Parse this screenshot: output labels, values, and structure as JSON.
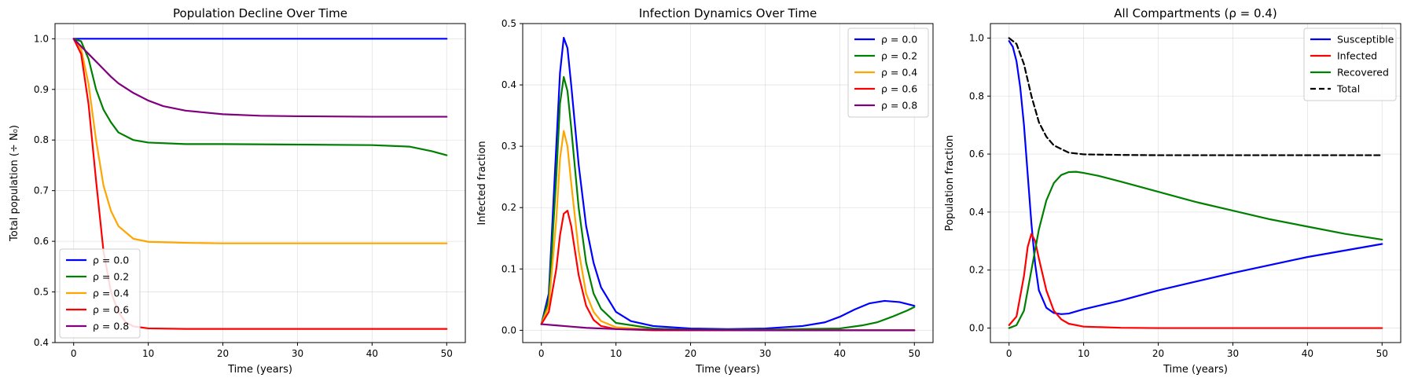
{
  "chart_data": [
    {
      "type": "line",
      "title": "Population Decline Over Time",
      "xlabel": "Time (years)",
      "ylabel": "Total population (÷ N₀)",
      "xlim": [
        -2.5,
        52.5
      ],
      "ylim": [
        0.4,
        1.03
      ],
      "xticks": [
        0,
        10,
        20,
        30,
        40,
        50
      ],
      "xtick_labels": [
        "0",
        "10",
        "20",
        "30",
        "40",
        "50"
      ],
      "yticks": [
        0.4,
        0.5,
        0.6,
        0.7,
        0.8,
        0.9,
        1.0
      ],
      "ytick_labels": [
        "0.4",
        "0.5",
        "0.6",
        "0.7",
        "0.8",
        "0.9",
        "1.0"
      ],
      "grid": true,
      "legend_position": "lower-left",
      "series": [
        {
          "name": "ρ = 0.0",
          "color": "#0000ff",
          "dashed": false,
          "x": [
            0,
            50
          ],
          "y": [
            1.0,
            1.0
          ]
        },
        {
          "name": "ρ = 0.2",
          "color": "#008000",
          "dashed": false,
          "x": [
            0,
            1,
            2,
            3,
            4,
            5,
            6,
            8,
            10,
            15,
            20,
            30,
            40,
            45,
            48,
            50
          ],
          "y": [
            1.0,
            0.995,
            0.96,
            0.9,
            0.86,
            0.835,
            0.815,
            0.8,
            0.795,
            0.792,
            0.792,
            0.791,
            0.79,
            0.787,
            0.778,
            0.77
          ]
        },
        {
          "name": "ρ = 0.4",
          "color": "#ffa500",
          "dashed": false,
          "x": [
            0,
            1,
            2,
            3,
            4,
            5,
            6,
            8,
            10,
            15,
            20,
            30,
            40,
            50
          ],
          "y": [
            1.0,
            0.98,
            0.91,
            0.8,
            0.71,
            0.66,
            0.63,
            0.605,
            0.599,
            0.597,
            0.596,
            0.596,
            0.596,
            0.596
          ]
        },
        {
          "name": "ρ = 0.6",
          "color": "#ff0000",
          "dashed": false,
          "x": [
            0,
            1,
            2,
            3,
            4,
            5,
            6,
            7,
            8,
            10,
            15,
            20,
            30,
            40,
            50
          ],
          "y": [
            1.0,
            0.97,
            0.87,
            0.72,
            0.58,
            0.5,
            0.46,
            0.44,
            0.432,
            0.428,
            0.427,
            0.427,
            0.427,
            0.427,
            0.427
          ]
        },
        {
          "name": "ρ = 0.8",
          "color": "#800080",
          "dashed": false,
          "x": [
            0,
            1,
            2,
            3,
            4,
            5,
            6,
            8,
            10,
            12,
            15,
            20,
            25,
            30,
            40,
            50
          ],
          "y": [
            1.0,
            0.985,
            0.97,
            0.955,
            0.94,
            0.925,
            0.912,
            0.893,
            0.878,
            0.867,
            0.858,
            0.851,
            0.848,
            0.847,
            0.846,
            0.846
          ]
        }
      ]
    },
    {
      "type": "line",
      "title": "Infection Dynamics Over Time",
      "xlabel": "Time (years)",
      "ylabel": "Infected fraction",
      "xlim": [
        -2.5,
        52.5
      ],
      "ylim": [
        -0.02,
        0.5
      ],
      "xticks": [
        0,
        10,
        20,
        30,
        40,
        50
      ],
      "xtick_labels": [
        "0",
        "10",
        "20",
        "30",
        "40",
        "50"
      ],
      "yticks": [
        0.0,
        0.1,
        0.2,
        0.3,
        0.4,
        0.5
      ],
      "ytick_labels": [
        "0.0",
        "0.1",
        "0.2",
        "0.3",
        "0.4",
        "0.5"
      ],
      "grid": true,
      "legend_position": "top-right",
      "series": [
        {
          "name": "ρ = 0.0",
          "color": "#0000ff",
          "dashed": false,
          "x": [
            0,
            1,
            2,
            2.5,
            3,
            3.5,
            4,
            5,
            6,
            7,
            8,
            10,
            12,
            15,
            20,
            25,
            30,
            35,
            38,
            40,
            42,
            44,
            46,
            48,
            50
          ],
          "y": [
            0.01,
            0.06,
            0.3,
            0.42,
            0.477,
            0.46,
            0.4,
            0.27,
            0.17,
            0.11,
            0.07,
            0.03,
            0.015,
            0.007,
            0.003,
            0.002,
            0.003,
            0.007,
            0.013,
            0.022,
            0.034,
            0.044,
            0.048,
            0.046,
            0.04
          ]
        },
        {
          "name": "ρ = 0.2",
          "color": "#008000",
          "dashed": false,
          "x": [
            0,
            1,
            2,
            2.5,
            3,
            3.5,
            4,
            5,
            6,
            7,
            8,
            10,
            15,
            20,
            30,
            40,
            43,
            45,
            47,
            49,
            50
          ],
          "y": [
            0.01,
            0.05,
            0.25,
            0.37,
            0.413,
            0.39,
            0.33,
            0.2,
            0.11,
            0.06,
            0.035,
            0.012,
            0.003,
            0.001,
            0.001,
            0.003,
            0.008,
            0.013,
            0.022,
            0.032,
            0.038
          ]
        },
        {
          "name": "ρ = 0.4",
          "color": "#ffa500",
          "dashed": false,
          "x": [
            0,
            1,
            2,
            2.5,
            3,
            3.5,
            4,
            5,
            6,
            7,
            8,
            10,
            15,
            20,
            30,
            40,
            50
          ],
          "y": [
            0.01,
            0.04,
            0.18,
            0.28,
            0.325,
            0.3,
            0.24,
            0.13,
            0.06,
            0.03,
            0.015,
            0.005,
            0.001,
            0.0,
            0.0,
            0.0,
            0.0
          ]
        },
        {
          "name": "ρ = 0.6",
          "color": "#ff0000",
          "dashed": false,
          "x": [
            0,
            1,
            2,
            2.5,
            3,
            3.5,
            4,
            5,
            6,
            7,
            8,
            10,
            15,
            20,
            30,
            40,
            50
          ],
          "y": [
            0.01,
            0.03,
            0.1,
            0.155,
            0.19,
            0.195,
            0.17,
            0.09,
            0.04,
            0.017,
            0.007,
            0.002,
            0.0,
            0.0,
            0.0,
            0.0,
            0.0
          ]
        },
        {
          "name": "ρ = 0.8",
          "color": "#800080",
          "dashed": false,
          "x": [
            0,
            2,
            4,
            6,
            8,
            10,
            12,
            15,
            20,
            30,
            40,
            50
          ],
          "y": [
            0.01,
            0.008,
            0.006,
            0.004,
            0.003,
            0.002,
            0.0015,
            0.001,
            0.0005,
            0.0,
            0.0,
            0.0
          ]
        }
      ]
    },
    {
      "type": "line",
      "title": "All Compartments (ρ = 0.4)",
      "xlabel": "Time (years)",
      "ylabel": "Population fraction",
      "xlim": [
        -2.5,
        52.5
      ],
      "ylim": [
        -0.05,
        1.05
      ],
      "xticks": [
        0,
        10,
        20,
        30,
        40,
        50
      ],
      "xtick_labels": [
        "0",
        "10",
        "20",
        "30",
        "40",
        "50"
      ],
      "yticks": [
        0.0,
        0.2,
        0.4,
        0.6,
        0.8,
        1.0
      ],
      "ytick_labels": [
        "0.0",
        "0.2",
        "0.4",
        "0.6",
        "0.8",
        "1.0"
      ],
      "grid": true,
      "legend_position": "top-right",
      "series": [
        {
          "name": "Susceptible",
          "color": "#0000ff",
          "dashed": false,
          "x": [
            0,
            0.5,
            1,
            1.5,
            2,
            2.5,
            3,
            3.5,
            4,
            5,
            6,
            7,
            8,
            10,
            15,
            20,
            30,
            40,
            50
          ],
          "y": [
            0.99,
            0.97,
            0.92,
            0.83,
            0.7,
            0.53,
            0.36,
            0.22,
            0.13,
            0.07,
            0.052,
            0.048,
            0.05,
            0.065,
            0.095,
            0.13,
            0.19,
            0.245,
            0.29
          ]
        },
        {
          "name": "Infected",
          "color": "#ff0000",
          "dashed": false,
          "x": [
            0,
            1,
            2,
            2.5,
            3,
            3.5,
            4,
            5,
            6,
            7,
            8,
            10,
            15,
            20,
            30,
            40,
            50
          ],
          "y": [
            0.01,
            0.04,
            0.18,
            0.28,
            0.325,
            0.3,
            0.24,
            0.13,
            0.06,
            0.03,
            0.015,
            0.005,
            0.001,
            0.0,
            0.0,
            0.0,
            0.0
          ]
        },
        {
          "name": "Recovered",
          "color": "#008000",
          "dashed": false,
          "x": [
            0,
            1,
            2,
            3,
            4,
            5,
            6,
            7,
            8,
            9,
            10,
            12,
            15,
            20,
            25,
            30,
            35,
            40,
            45,
            50
          ],
          "y": [
            0.0,
            0.01,
            0.06,
            0.2,
            0.34,
            0.44,
            0.5,
            0.528,
            0.538,
            0.539,
            0.535,
            0.525,
            0.505,
            0.47,
            0.435,
            0.405,
            0.375,
            0.35,
            0.325,
            0.305
          ]
        },
        {
          "name": "Total",
          "color": "#000000",
          "dashed": true,
          "x": [
            0,
            1,
            2,
            3,
            4,
            5,
            6,
            8,
            10,
            15,
            20,
            30,
            40,
            50
          ],
          "y": [
            1.0,
            0.98,
            0.91,
            0.8,
            0.71,
            0.66,
            0.63,
            0.605,
            0.599,
            0.597,
            0.596,
            0.596,
            0.596,
            0.596
          ]
        }
      ]
    }
  ]
}
